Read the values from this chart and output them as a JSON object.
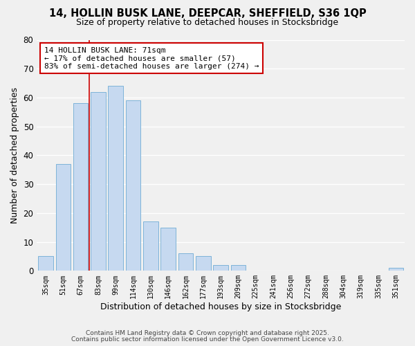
{
  "title_line1": "14, HOLLIN BUSK LANE, DEEPCAR, SHEFFIELD, S36 1QP",
  "title_line2": "Size of property relative to detached houses in Stocksbridge",
  "xlabel": "Distribution of detached houses by size in Stocksbridge",
  "ylabel": "Number of detached properties",
  "bar_labels": [
    "35sqm",
    "51sqm",
    "67sqm",
    "83sqm",
    "99sqm",
    "114sqm",
    "130sqm",
    "146sqm",
    "162sqm",
    "177sqm",
    "193sqm",
    "209sqm",
    "225sqm",
    "241sqm",
    "256sqm",
    "272sqm",
    "288sqm",
    "304sqm",
    "319sqm",
    "335sqm",
    "351sqm"
  ],
  "bar_values": [
    5,
    37,
    58,
    62,
    64,
    59,
    17,
    15,
    6,
    5,
    2,
    2,
    0,
    0,
    0,
    0,
    0,
    0,
    0,
    0,
    1
  ],
  "bar_color": "#c6d9f0",
  "bar_edge_color": "#7eb3d8",
  "vline_color": "#cc0000",
  "vline_xindex": 2.5,
  "annotation_text": "14 HOLLIN BUSK LANE: 71sqm\n← 17% of detached houses are smaller (57)\n83% of semi-detached houses are larger (274) →",
  "ylim": [
    0,
    80
  ],
  "yticks": [
    0,
    10,
    20,
    30,
    40,
    50,
    60,
    70,
    80
  ],
  "background_color": "#f0f0f0",
  "plot_bg_color": "#f0f0f0",
  "grid_color": "#ffffff",
  "footer_line1": "Contains HM Land Registry data © Crown copyright and database right 2025.",
  "footer_line2": "Contains public sector information licensed under the Open Government Licence v3.0."
}
